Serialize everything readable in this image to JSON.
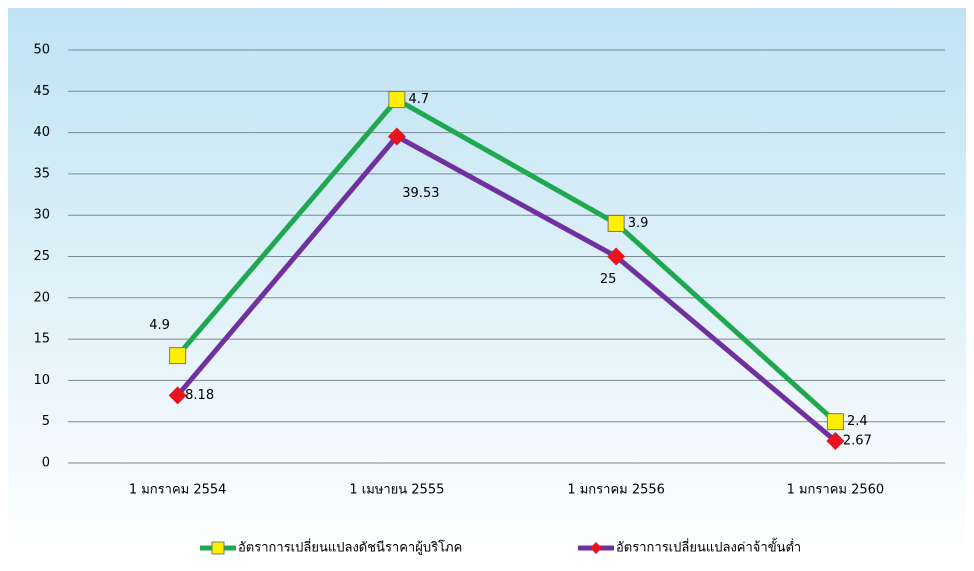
{
  "chart_data": {
    "type": "line",
    "categories": [
      "1 มกราคม 2554",
      "1 เมษายน 2555",
      "1 มกราคม 2556",
      "1 มกราคม 2560"
    ],
    "series": [
      {
        "name": "อัตราการเปลี่ยนแปลงดัชนีราคาผู้บริโภค",
        "color": "#1fa84f",
        "marker_color": "#ffef00",
        "values": [
          13,
          44,
          29,
          5
        ]
      },
      {
        "name": "อัตราการเปลี่ยนแปลงค่าจ้าขั้นต่ำ",
        "color": "#7030a0",
        "marker_color": "#e8141e",
        "values": [
          8.18,
          39.53,
          25,
          2.67
        ]
      }
    ],
    "annotations": [
      "4.9",
      "4.7",
      "3.9",
      "2.4"
    ],
    "ylim": [
      0,
      50
    ],
    "yticks": [
      0,
      5,
      10,
      15,
      20,
      25,
      30,
      35,
      40,
      45,
      50
    ],
    "grid": true
  }
}
